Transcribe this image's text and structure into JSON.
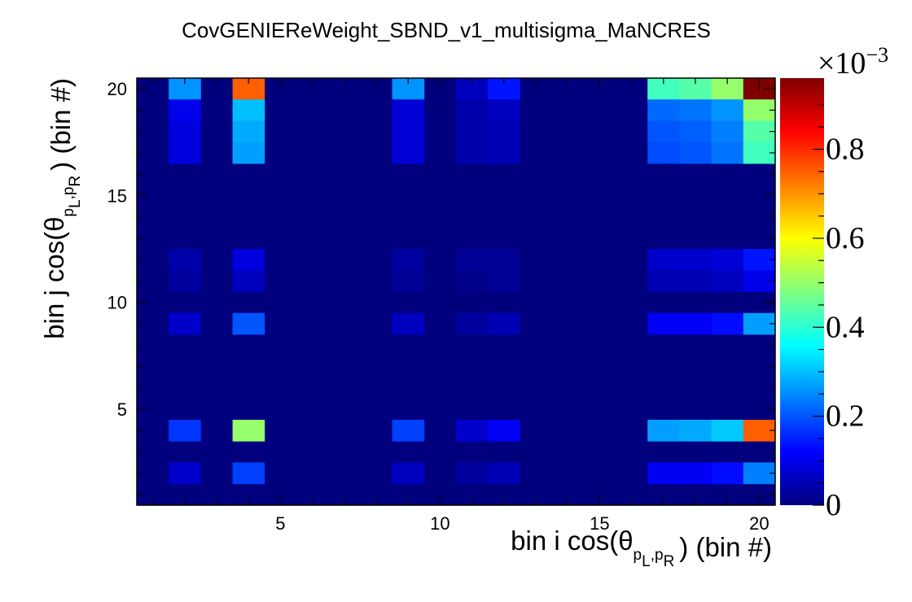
{
  "chart_data": {
    "type": "heatmap",
    "title": "CovGENIEReWeight_SBND_v1_multisigma_MaNCRES",
    "xlabel": {
      "main": "bin i cos(θ",
      "sub": "p",
      "subsub": "L",
      "sep": ",",
      "sub2": "p",
      "subsub2": "R",
      "tail": ") (bin #)"
    },
    "ylabel": {
      "main": "bin j cos(θ",
      "sub": "p",
      "subsub": "L",
      "sep": ",",
      "sub2": "p",
      "subsub2": "R",
      "tail": ") (bin #)"
    },
    "xlim": [
      0.5,
      20.5
    ],
    "ylim": [
      0.5,
      20.5
    ],
    "x_ticks": [
      "5",
      "10",
      "15",
      "20"
    ],
    "y_ticks": [
      "5",
      "10",
      "15",
      "20"
    ],
    "z_multiplier": {
      "base": "×10",
      "exp": "−3"
    },
    "zlim": [
      0,
      0.96
    ],
    "z_ticks": [
      "0",
      "0.2",
      "0.4",
      "0.6",
      "0.8"
    ],
    "colormap": "jet",
    "grid": false,
    "palette_colors": [
      "#00007f",
      "#0000ff",
      "#007fff",
      "#00ffff",
      "#7fff7f",
      "#ffff00",
      "#ff7f00",
      "#ff0000",
      "#7f0000"
    ],
    "cells": [
      {
        "i": 2,
        "j": 20,
        "v": 0.26
      },
      {
        "i": 4,
        "j": 20,
        "v": 0.75
      },
      {
        "i": 9,
        "j": 20,
        "v": 0.26
      },
      {
        "i": 11,
        "j": 20,
        "v": 0.06
      },
      {
        "i": 12,
        "j": 20,
        "v": 0.14
      },
      {
        "i": 17,
        "j": 20,
        "v": 0.42
      },
      {
        "i": 18,
        "j": 20,
        "v": 0.44
      },
      {
        "i": 19,
        "j": 20,
        "v": 0.5
      },
      {
        "i": 20,
        "j": 20,
        "v": 0.96
      },
      {
        "i": 2,
        "j": 19,
        "v": 0.1
      },
      {
        "i": 4,
        "j": 19,
        "v": 0.3
      },
      {
        "i": 9,
        "j": 19,
        "v": 0.08
      },
      {
        "i": 11,
        "j": 19,
        "v": 0.04
      },
      {
        "i": 12,
        "j": 19,
        "v": 0.06
      },
      {
        "i": 17,
        "j": 19,
        "v": 0.22
      },
      {
        "i": 18,
        "j": 19,
        "v": 0.23
      },
      {
        "i": 19,
        "j": 19,
        "v": 0.26
      },
      {
        "i": 20,
        "j": 19,
        "v": 0.5
      },
      {
        "i": 2,
        "j": 18,
        "v": 0.09
      },
      {
        "i": 4,
        "j": 18,
        "v": 0.28
      },
      {
        "i": 9,
        "j": 18,
        "v": 0.08
      },
      {
        "i": 11,
        "j": 18,
        "v": 0.04
      },
      {
        "i": 12,
        "j": 18,
        "v": 0.05
      },
      {
        "i": 17,
        "j": 18,
        "v": 0.2
      },
      {
        "i": 18,
        "j": 18,
        "v": 0.21
      },
      {
        "i": 19,
        "j": 18,
        "v": 0.24
      },
      {
        "i": 20,
        "j": 18,
        "v": 0.44
      },
      {
        "i": 2,
        "j": 17,
        "v": 0.09
      },
      {
        "i": 4,
        "j": 17,
        "v": 0.27
      },
      {
        "i": 9,
        "j": 17,
        "v": 0.08
      },
      {
        "i": 11,
        "j": 17,
        "v": 0.04
      },
      {
        "i": 12,
        "j": 17,
        "v": 0.05
      },
      {
        "i": 17,
        "j": 17,
        "v": 0.19
      },
      {
        "i": 18,
        "j": 17,
        "v": 0.2
      },
      {
        "i": 19,
        "j": 17,
        "v": 0.23
      },
      {
        "i": 20,
        "j": 17,
        "v": 0.42
      },
      {
        "i": 2,
        "j": 12,
        "v": 0.04
      },
      {
        "i": 4,
        "j": 12,
        "v": 0.09
      },
      {
        "i": 9,
        "j": 12,
        "v": 0.03
      },
      {
        "i": 11,
        "j": 12,
        "v": 0.02
      },
      {
        "i": 12,
        "j": 12,
        "v": 0.02
      },
      {
        "i": 17,
        "j": 12,
        "v": 0.07
      },
      {
        "i": 18,
        "j": 12,
        "v": 0.07
      },
      {
        "i": 19,
        "j": 12,
        "v": 0.08
      },
      {
        "i": 20,
        "j": 12,
        "v": 0.14
      },
      {
        "i": 2,
        "j": 11,
        "v": 0.03
      },
      {
        "i": 4,
        "j": 11,
        "v": 0.06
      },
      {
        "i": 9,
        "j": 11,
        "v": 0.02
      },
      {
        "i": 11,
        "j": 11,
        "v": 0.01
      },
      {
        "i": 12,
        "j": 11,
        "v": 0.02
      },
      {
        "i": 17,
        "j": 11,
        "v": 0.05
      },
      {
        "i": 18,
        "j": 11,
        "v": 0.05
      },
      {
        "i": 19,
        "j": 11,
        "v": 0.06
      },
      {
        "i": 20,
        "j": 11,
        "v": 0.1
      },
      {
        "i": 2,
        "j": 9,
        "v": 0.07
      },
      {
        "i": 4,
        "j": 9,
        "v": 0.2
      },
      {
        "i": 9,
        "j": 9,
        "v": 0.06
      },
      {
        "i": 11,
        "j": 9,
        "v": 0.03
      },
      {
        "i": 12,
        "j": 9,
        "v": 0.05
      },
      {
        "i": 17,
        "j": 9,
        "v": 0.11
      },
      {
        "i": 18,
        "j": 9,
        "v": 0.11
      },
      {
        "i": 19,
        "j": 9,
        "v": 0.13
      },
      {
        "i": 20,
        "j": 9,
        "v": 0.27
      },
      {
        "i": 2,
        "j": 4,
        "v": 0.17
      },
      {
        "i": 4,
        "j": 4,
        "v": 0.5
      },
      {
        "i": 9,
        "j": 4,
        "v": 0.18
      },
      {
        "i": 11,
        "j": 4,
        "v": 0.07
      },
      {
        "i": 12,
        "j": 4,
        "v": 0.11
      },
      {
        "i": 17,
        "j": 4,
        "v": 0.27
      },
      {
        "i": 18,
        "j": 4,
        "v": 0.28
      },
      {
        "i": 19,
        "j": 4,
        "v": 0.31
      },
      {
        "i": 20,
        "j": 4,
        "v": 0.75
      },
      {
        "i": 2,
        "j": 2,
        "v": 0.07
      },
      {
        "i": 4,
        "j": 2,
        "v": 0.18
      },
      {
        "i": 9,
        "j": 2,
        "v": 0.06
      },
      {
        "i": 11,
        "j": 2,
        "v": 0.03
      },
      {
        "i": 12,
        "j": 2,
        "v": 0.05
      },
      {
        "i": 17,
        "j": 2,
        "v": 0.11
      },
      {
        "i": 18,
        "j": 2,
        "v": 0.11
      },
      {
        "i": 19,
        "j": 2,
        "v": 0.13
      },
      {
        "i": 20,
        "j": 2,
        "v": 0.24
      }
    ]
  }
}
